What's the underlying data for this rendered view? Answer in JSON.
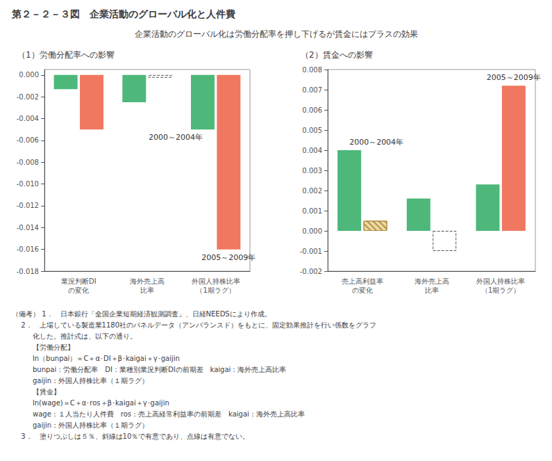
{
  "title": "第２－２－３図　企業活動のグローバル化と人件費",
  "subtitle": "企業活動のグローバル化は労働分配率を押し下げるが賃金にはプラスの効果",
  "notes": [
    "（備考） 1．　日本銀行「全国企業短期経済観測調査」、日経NEEDSにより作成。",
    "　 2．　上場している製造業1180社のパネルデータ（アンバランスド）をもとに、固定効果推計を行い係数をグラフ",
    "　　　化した。推計式は、以下の通り。",
    "　　　【労働分配】",
    "　　　ln（bunpai）＝C＋α･DI＋β･kaigai＋γ･gaijin",
    "　　　bunpai：労働分配率　DI：業種別業況判断DIの前期差　kaigai：海外売上高比率",
    "　　　gaijin：外国人持株比率（１期ラグ）",
    "　　　【賃金】",
    "　　　ln(wage)＝C＋α･ros＋β･kaigai＋γ･gaijin",
    "　　　wage：１人当たり人件費　ros：売上高経常利益率の前期差　kaigai：海外売上高比率",
    "　　　gaijin：外国人持株比率（１期ラグ）",
    "　 3．　塗りつぶしは５％、斜線は10％で有意であり、点線は有意でない。"
  ],
  "chart_data": [
    {
      "type": "bar",
      "title": "（1）労働分配率への影響",
      "categories": [
        "業況判断DI\nの変化",
        "海外売上高\n比率",
        "外国人持株比率\n（1期ラグ）"
      ],
      "series": [
        {
          "color": "#4db87a",
          "line_style": "solid",
          "values": [
            -0.0013,
            -0.0025,
            -0.005
          ]
        },
        {
          "color": "#f07860",
          "line_style": "solid",
          "values": [
            -0.005,
            null,
            -0.016
          ]
        },
        {
          "color": "#ffffff",
          "line_style": "dashed",
          "values": [
            null,
            -0.00025,
            null
          ]
        }
      ],
      "ylim": [
        -0.018,
        0.0005
      ],
      "yticks": [
        -0.018,
        -0.016,
        -0.014,
        -0.012,
        {
          "value": -0.01,
          "label": "-0.010"
        },
        -0.008,
        -0.006,
        -0.004,
        -0.002,
        {
          "value": 0,
          "label": "0.000"
        }
      ],
      "grid": false,
      "annotations": [
        {
          "text": "2000～2004年",
          "x": "外国人持株比率\n（1期ラグ）",
          "y": -0.005
        },
        {
          "text": "2005～2009年",
          "x": "外国人持株比率\n（1期ラグ）",
          "y": -0.016
        }
      ]
    },
    {
      "type": "bar",
      "title": "（2）賃金への影響",
      "categories": [
        "売上高利益率\nの変化",
        "海外売上高\n比率",
        "外国人持株比率\n（1期ラグ）"
      ],
      "series": [
        {
          "color": "#4db87a",
          "line_style": "solid",
          "values": [
            0.004,
            0.0016,
            0.0023
          ]
        },
        {
          "color": "#f07860",
          "line_style": "solid",
          "values": [
            null,
            null,
            0.0072
          ]
        },
        {
          "color": "#f0d8a0",
          "line_style": "hatched",
          "values": [
            0.0005,
            null,
            null
          ]
        },
        {
          "color": "#ffffff",
          "line_style": "dashed",
          "values": [
            null,
            -0.001,
            null
          ]
        }
      ],
      "ylim": [
        -0.002,
        0.008
      ],
      "yticks": [
        -0.002,
        -0.001,
        {
          "value": 0,
          "label": "0.000"
        },
        0.001,
        0.002,
        0.003,
        0.004,
        0.005,
        0.006,
        0.007,
        0.008
      ],
      "grid": false,
      "annotations": [
        {
          "text": "2000～2004年",
          "x": "売上高利益率\nの変化",
          "y": 0.004
        },
        {
          "text": "2005～2009年",
          "x": "外国人持株比率\n（1期ラグ）",
          "y": 0.0072
        }
      ]
    }
  ]
}
